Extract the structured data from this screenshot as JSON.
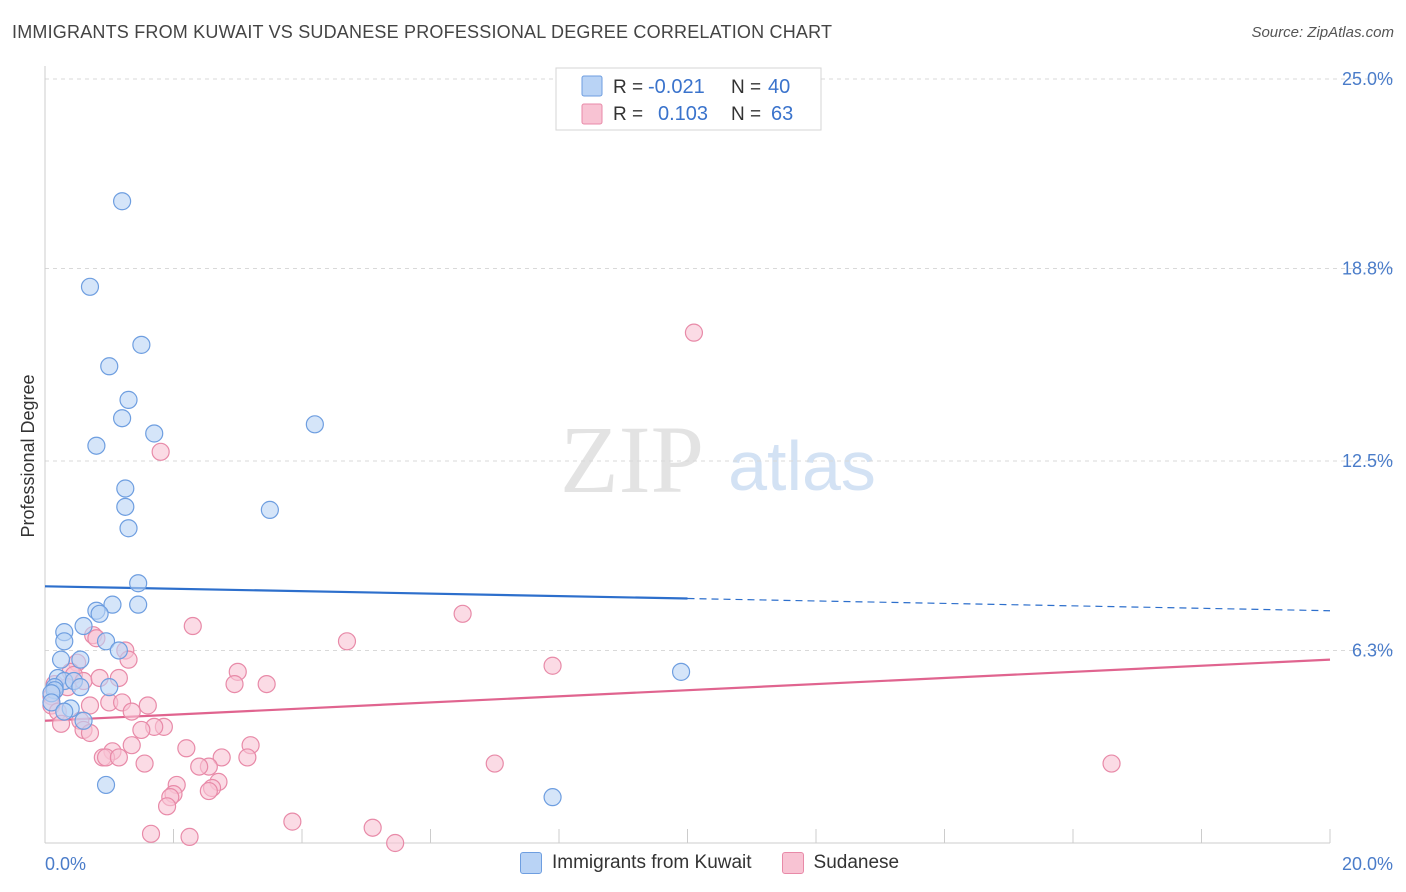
{
  "title": "IMMIGRANTS FROM KUWAIT VS SUDANESE PROFESSIONAL DEGREE CORRELATION CHART",
  "source": "Source: ZipAtlas.com",
  "watermark": {
    "zip": "ZIP",
    "atlas": "atlas"
  },
  "legend": {
    "rows": [
      {
        "r_label": "R =",
        "r_value": "-0.021",
        "n_label": "N =",
        "n_value": "40"
      },
      {
        "r_label": "R =",
        "r_value": "0.103",
        "n_label": "N =",
        "n_value": "63"
      }
    ]
  },
  "bottom_legend": [
    {
      "label": "Immigrants from Kuwait"
    },
    {
      "label": "Sudanese"
    }
  ],
  "colors": {
    "kuwait_fill": "#b9d3f5",
    "kuwait_stroke": "#6e9ee0",
    "kuwait_line": "#2d6fcc",
    "sudanese_fill": "#f8c3d3",
    "sudanese_stroke": "#e88aa8",
    "sudanese_line": "#e0648f",
    "grid": "#d9d9d9",
    "axis_text": "#4a7cc9"
  },
  "chart_data": {
    "type": "scatter",
    "title": "IMMIGRANTS FROM KUWAIT VS SUDANESE PROFESSIONAL DEGREE CORRELATION CHART",
    "xlabel": "",
    "ylabel": "Professional Degree",
    "xlim": [
      0,
      20
    ],
    "ylim": [
      0,
      25
    ],
    "x_tick_labels": [
      "0.0%",
      "20.0%"
    ],
    "y_ticks": [
      6.3,
      12.5,
      18.8,
      25.0
    ],
    "y_tick_labels": [
      "6.3%",
      "12.5%",
      "18.8%",
      "25.0%"
    ],
    "grid": true,
    "series": [
      {
        "name": "Immigrants from Kuwait",
        "R": -0.021,
        "N": 40,
        "trend": {
          "x": [
            0,
            10
          ],
          "y": [
            8.4,
            8.0
          ],
          "dashed_to": [
            20,
            7.6
          ]
        },
        "points": [
          [
            1.2,
            21.0
          ],
          [
            0.7,
            18.2
          ],
          [
            1.5,
            16.3
          ],
          [
            1.0,
            15.6
          ],
          [
            1.3,
            14.5
          ],
          [
            1.2,
            13.9
          ],
          [
            1.7,
            13.4
          ],
          [
            0.8,
            13.0
          ],
          [
            4.2,
            13.7
          ],
          [
            1.25,
            11.6
          ],
          [
            1.25,
            11.0
          ],
          [
            1.3,
            10.3
          ],
          [
            3.5,
            10.9
          ],
          [
            1.45,
            8.5
          ],
          [
            1.05,
            7.8
          ],
          [
            1.45,
            7.8
          ],
          [
            0.8,
            7.6
          ],
          [
            0.85,
            7.5
          ],
          [
            0.6,
            7.1
          ],
          [
            0.3,
            6.9
          ],
          [
            0.3,
            6.6
          ],
          [
            0.95,
            6.6
          ],
          [
            1.15,
            6.3
          ],
          [
            0.55,
            6.0
          ],
          [
            0.25,
            6.0
          ],
          [
            0.2,
            5.4
          ],
          [
            0.3,
            5.3
          ],
          [
            0.15,
            5.1
          ],
          [
            0.45,
            5.3
          ],
          [
            0.55,
            5.1
          ],
          [
            1.0,
            5.1
          ],
          [
            0.15,
            5.0
          ],
          [
            0.1,
            4.9
          ],
          [
            0.1,
            4.6
          ],
          [
            0.4,
            4.4
          ],
          [
            0.3,
            4.3
          ],
          [
            0.6,
            4.0
          ],
          [
            0.95,
            1.9
          ],
          [
            7.9,
            1.5
          ],
          [
            9.9,
            5.6
          ]
        ]
      },
      {
        "name": "Sudanese",
        "R": 0.103,
        "N": 63,
        "trend": {
          "x": [
            0,
            20
          ],
          "y": [
            4.0,
            6.0
          ]
        },
        "points": [
          [
            10.1,
            16.7
          ],
          [
            1.8,
            12.8
          ],
          [
            6.5,
            7.5
          ],
          [
            2.3,
            7.1
          ],
          [
            0.75,
            6.8
          ],
          [
            0.8,
            6.7
          ],
          [
            4.7,
            6.6
          ],
          [
            1.25,
            6.3
          ],
          [
            1.3,
            6.0
          ],
          [
            0.5,
            5.9
          ],
          [
            7.9,
            5.8
          ],
          [
            3.0,
            5.6
          ],
          [
            0.4,
            5.6
          ],
          [
            0.45,
            5.5
          ],
          [
            0.6,
            5.3
          ],
          [
            0.85,
            5.4
          ],
          [
            1.15,
            5.4
          ],
          [
            2.95,
            5.2
          ],
          [
            3.45,
            5.2
          ],
          [
            0.35,
            5.1
          ],
          [
            0.15,
            5.0
          ],
          [
            0.1,
            4.8
          ],
          [
            0.1,
            4.5
          ],
          [
            0.2,
            4.3
          ],
          [
            1.0,
            4.6
          ],
          [
            1.2,
            4.6
          ],
          [
            1.6,
            4.5
          ],
          [
            0.7,
            4.5
          ],
          [
            1.35,
            4.3
          ],
          [
            0.55,
            4.0
          ],
          [
            0.25,
            3.9
          ],
          [
            0.6,
            3.7
          ],
          [
            1.85,
            3.8
          ],
          [
            1.7,
            3.8
          ],
          [
            0.7,
            3.6
          ],
          [
            1.5,
            3.7
          ],
          [
            1.35,
            3.2
          ],
          [
            2.2,
            3.1
          ],
          [
            3.2,
            3.2
          ],
          [
            1.05,
            3.0
          ],
          [
            0.9,
            2.8
          ],
          [
            0.95,
            2.8
          ],
          [
            1.15,
            2.8
          ],
          [
            3.15,
            2.8
          ],
          [
            2.75,
            2.8
          ],
          [
            7.0,
            2.6
          ],
          [
            2.55,
            2.5
          ],
          [
            2.4,
            2.5
          ],
          [
            1.55,
            2.6
          ],
          [
            16.6,
            2.6
          ],
          [
            2.7,
            2.0
          ],
          [
            2.05,
            1.9
          ],
          [
            2.6,
            1.8
          ],
          [
            2.55,
            1.7
          ],
          [
            2.0,
            1.6
          ],
          [
            1.95,
            1.5
          ],
          [
            1.9,
            1.2
          ],
          [
            3.85,
            0.7
          ],
          [
            5.1,
            0.5
          ],
          [
            1.65,
            0.3
          ],
          [
            2.25,
            0.2
          ],
          [
            5.45,
            0.0
          ],
          [
            0.15,
            5.2
          ]
        ]
      }
    ]
  }
}
